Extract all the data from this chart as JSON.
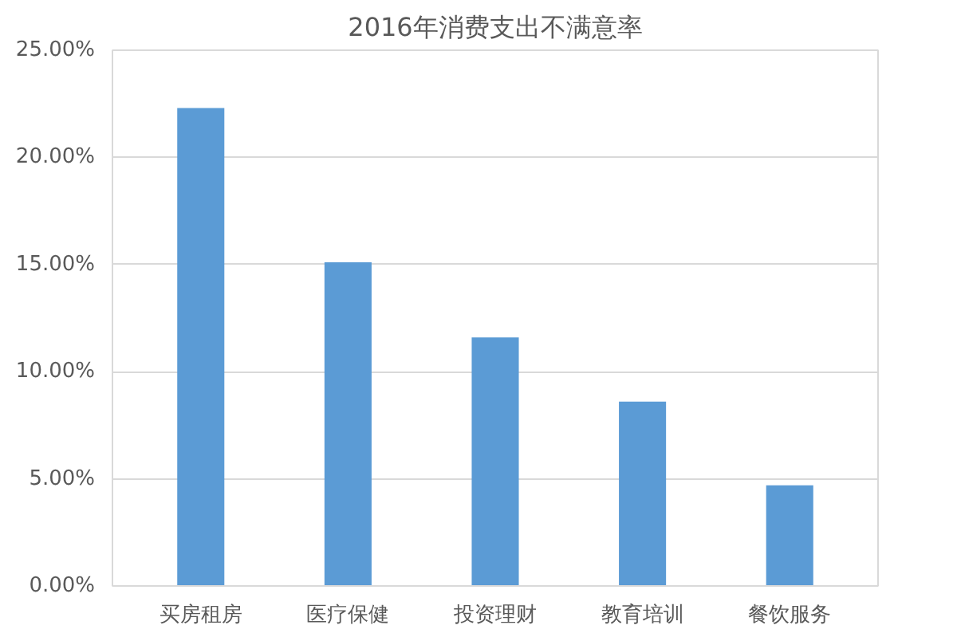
{
  "chart_data": {
    "type": "bar",
    "title": "2016年消费支出不满意率",
    "categories": [
      "买房租房",
      "医疗保健",
      "投资理财",
      "教育培训",
      "餐饮服务"
    ],
    "values": [
      22.3,
      15.1,
      11.6,
      8.6,
      4.7
    ],
    "color": "#5b9bd5",
    "ylim": [
      0,
      25
    ],
    "yticks": [
      {
        "value": 0,
        "label": "0.00%"
      },
      {
        "value": 5,
        "label": "5.00%"
      },
      {
        "value": 10,
        "label": "10.00%"
      },
      {
        "value": 15,
        "label": "15.00%"
      },
      {
        "value": 20,
        "label": "20.00%"
      },
      {
        "value": 25,
        "label": "25.00%"
      }
    ],
    "grid": "y"
  }
}
